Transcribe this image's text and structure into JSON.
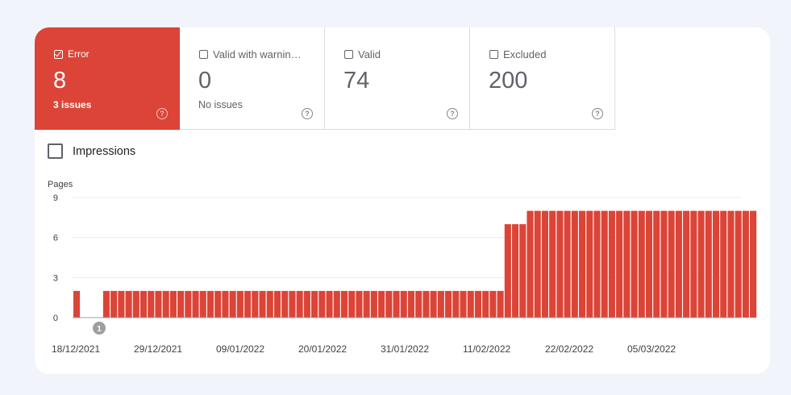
{
  "tiles": [
    {
      "label": "Error",
      "value": "8",
      "sub": "3 issues",
      "checked": true
    },
    {
      "label": "Valid with warnin…",
      "value": "0",
      "sub": "No issues",
      "checked": false
    },
    {
      "label": "Valid",
      "value": "74",
      "sub": "",
      "checked": false
    },
    {
      "label": "Excluded",
      "value": "200",
      "sub": "",
      "checked": false
    }
  ],
  "help_glyph": "?",
  "impressions_label": "Impressions",
  "colors": {
    "error": "#db4437",
    "background": "#f1f4fb"
  },
  "chart_data": {
    "type": "bar",
    "ylabel": "Pages",
    "ylim": [
      0,
      9
    ],
    "yticks": [
      "0",
      "3",
      "6",
      "9"
    ],
    "xticks": [
      "18/12/2021",
      "29/12/2021",
      "09/01/2022",
      "20/01/2022",
      "31/01/2022",
      "11/02/2022",
      "22/02/2022",
      "05/03/2022"
    ],
    "annotation": "1",
    "series": [
      {
        "values": [
          2,
          0,
          0,
          0,
          2,
          2,
          2,
          2,
          2,
          2,
          2,
          2,
          2,
          2,
          2,
          2,
          2,
          2,
          2,
          2,
          2,
          2,
          2,
          2,
          2,
          2,
          2,
          2,
          2,
          2,
          2,
          2,
          2,
          2,
          2,
          2,
          2,
          2,
          2,
          2,
          2,
          2,
          2,
          2,
          2,
          2,
          2,
          2,
          2,
          2,
          2,
          2,
          2,
          2,
          2,
          2,
          2,
          2,
          7,
          7,
          7,
          8,
          8,
          8,
          8,
          8,
          8,
          8,
          8,
          8,
          8,
          8,
          8,
          8,
          8,
          8,
          8,
          8,
          8,
          8,
          8,
          8,
          8,
          8,
          8,
          8,
          8,
          8,
          8,
          8,
          8,
          8
        ]
      }
    ]
  }
}
